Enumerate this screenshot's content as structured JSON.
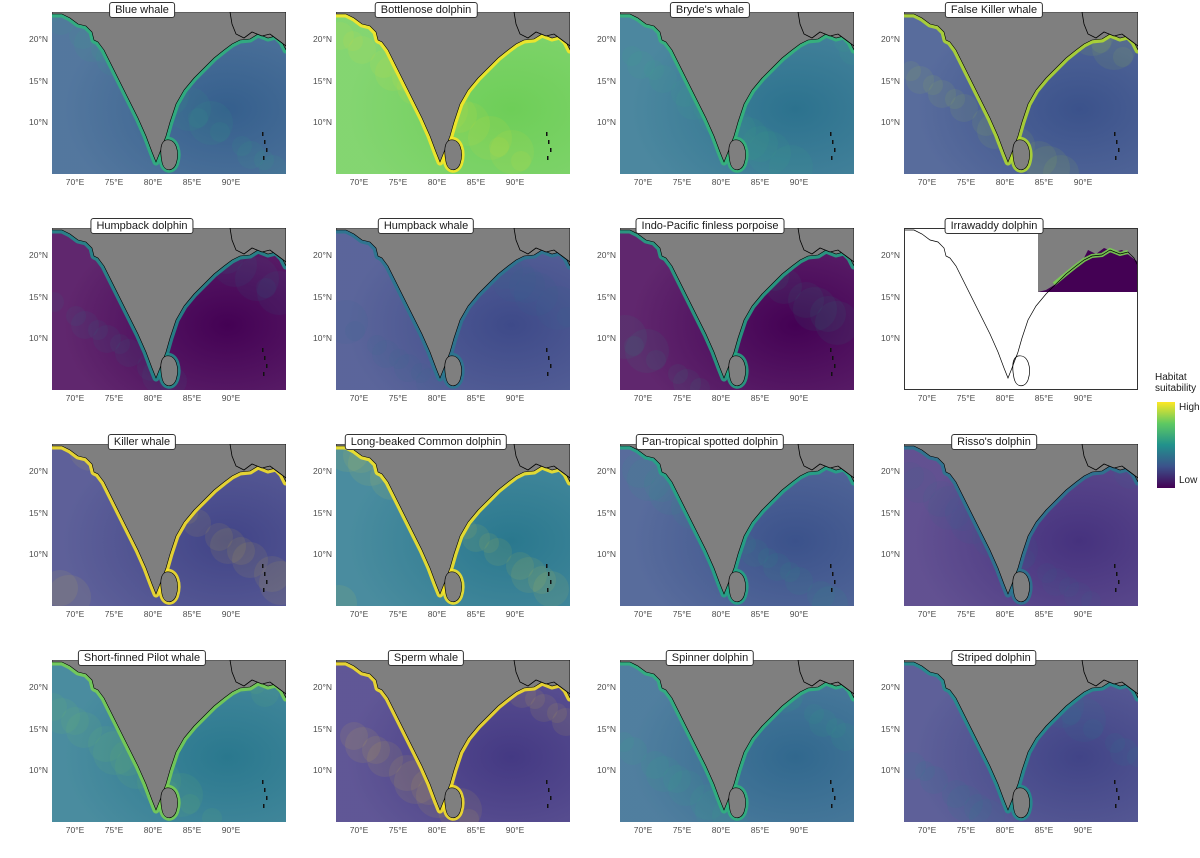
{
  "axes": {
    "y_ticks": [
      "20°N",
      "15°N",
      "10°N"
    ],
    "x_ticks": [
      "70°E",
      "75°E",
      "80°E",
      "85°E",
      "90°E"
    ]
  },
  "legend": {
    "title_line1": "Habitat",
    "title_line2": "suitability",
    "high_label": "High",
    "low_label": "Low",
    "colors": [
      "#440154",
      "#3b528b",
      "#21918c",
      "#5ec962",
      "#fde725"
    ]
  },
  "colors": {
    "land": "#7f7f7f",
    "coastline": "#000000",
    "white_background": "#ffffff"
  },
  "panels": [
    {
      "name": "Blue whale",
      "sea": "#355f8d",
      "coast": "#2fb47c"
    },
    {
      "name": "Bottlenose dolphin",
      "sea": "#6ece58",
      "coast": "#fde725"
    },
    {
      "name": "Bryde's whale",
      "sea": "#2c728e",
      "coast": "#35b779"
    },
    {
      "name": "False Killer whale",
      "sea": "#3b528b",
      "coast": "#b5de2b"
    },
    {
      "name": "Humpback dolphin",
      "sea": "#440154",
      "coast": "#21918c"
    },
    {
      "name": "Humpback whale",
      "sea": "#3e4a89",
      "coast": "#2a788e"
    },
    {
      "name": "Indo-Pacific finless porpoise",
      "sea": "#440154",
      "coast": "#22a884"
    },
    {
      "name": "Irrawaddy dolphin",
      "sea": "#440154",
      "coast": "#7ad151"
    },
    {
      "name": "Killer whale",
      "sea": "#414487",
      "coast": "#fde725"
    },
    {
      "name": "Long-beaked Common dolphin",
      "sea": "#2a788e",
      "coast": "#fde725"
    },
    {
      "name": "Pan-tropical spotted dolphin",
      "sea": "#3b528b",
      "coast": "#22a884"
    },
    {
      "name": "Risso's dolphin",
      "sea": "#46327e",
      "coast": "#2a788e"
    },
    {
      "name": "Short-finned Pilot whale",
      "sea": "#2a788e",
      "coast": "#7ad151"
    },
    {
      "name": "Sperm whale",
      "sea": "#443983",
      "coast": "#fde725"
    },
    {
      "name": "Spinner dolphin",
      "sea": "#31688e",
      "coast": "#2fb47c"
    },
    {
      "name": "Striped dolphin",
      "sea": "#414487",
      "coast": "#21918c"
    }
  ]
}
